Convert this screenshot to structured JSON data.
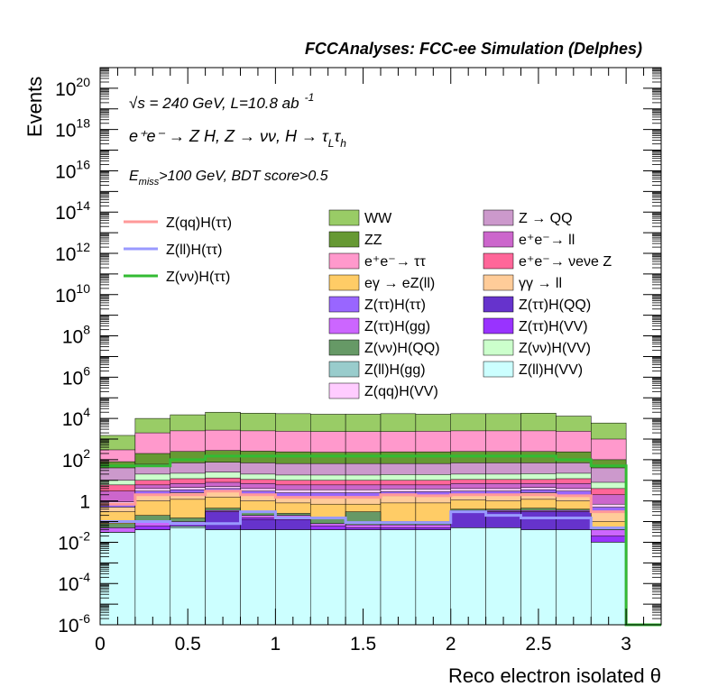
{
  "chart_data": {
    "type": "bar",
    "title": "FCCAnalyses: FCC-ee Simulation (Delphes)",
    "xlabel": "Reco electron isolated θ",
    "ylabel": "Events",
    "x_scale": "linear",
    "y_scale": "log",
    "xlim": [
      0,
      3.2
    ],
    "ylim": [
      1e-06,
      1e+21
    ],
    "x_ticks": [
      "0",
      "0.5",
      "1",
      "1.5",
      "2",
      "2.5",
      "3"
    ],
    "y_ticks": [
      {
        "value": 1e-06,
        "base": "10",
        "exp": "-6"
      },
      {
        "value": 0.0001,
        "base": "10",
        "exp": "-4"
      },
      {
        "value": 0.01,
        "base": "10",
        "exp": "-2"
      },
      {
        "value": 1,
        "base": "1",
        "exp": ""
      },
      {
        "value": 100.0,
        "base": "10",
        "exp": "2"
      },
      {
        "value": 10000.0,
        "base": "10",
        "exp": "4"
      },
      {
        "value": 1000000.0,
        "base": "10",
        "exp": "6"
      },
      {
        "value": 100000000.0,
        "base": "10",
        "exp": "8"
      },
      {
        "value": 10000000000.0,
        "base": "10",
        "exp": "10"
      },
      {
        "value": 1000000000000.0,
        "base": "10",
        "exp": "12"
      },
      {
        "value": 100000000000000.0,
        "base": "10",
        "exp": "14"
      },
      {
        "value": 1e+16,
        "base": "10",
        "exp": "16"
      },
      {
        "value": 1e+18,
        "base": "10",
        "exp": "18"
      },
      {
        "value": 1e+20,
        "base": "10",
        "exp": "20"
      }
    ],
    "annotations": {
      "energy": "√s = 240 GeV, L=10.8 ab",
      "energy_sup": "-1",
      "process": "e⁺e⁻ → Z H, Z → νν, H → τ",
      "process_sub1": "L",
      "process_tau2": "τ",
      "process_sub2": "h",
      "cut_e": "E",
      "cut_sub": "miss",
      "cut_rest": ">100 GeV, BDT score>0.5"
    },
    "bin_edges": [
      0,
      0.2,
      0.4,
      0.6,
      0.8,
      1.0,
      1.2,
      1.4,
      1.6,
      1.8,
      2.0,
      2.2,
      2.4,
      2.6,
      2.8,
      3.0
    ],
    "stack_boundaries": [
      {
        "name": "Z(ll)H(VV)",
        "color": "#ccffff",
        "values": [
          0.03,
          0.04,
          0.05,
          0.04,
          0.04,
          0.04,
          0.04,
          0.04,
          0.04,
          0.04,
          0.05,
          0.05,
          0.04,
          0.04,
          0.01
        ]
      },
      {
        "name": "Z(ll)H(gg)",
        "color": "#99cccc",
        "values": [
          0.03,
          0.04,
          0.06,
          0.04,
          0.04,
          0.04,
          0.04,
          0.04,
          0.04,
          0.04,
          0.05,
          0.05,
          0.04,
          0.04,
          0.01
        ]
      },
      {
        "name": "Z(ττ)H(QQ)",
        "color": "#6633cc",
        "values": [
          0.03,
          0.04,
          0.06,
          0.3,
          0.12,
          0.12,
          0.04,
          0.04,
          0.04,
          0.04,
          0.3,
          0.3,
          0.3,
          0.3,
          0.01
        ]
      },
      {
        "name": "Z(ττ)H(VV)",
        "color": "#9933ff",
        "values": [
          0.03,
          0.06,
          0.08,
          0.3,
          0.15,
          0.15,
          0.06,
          0.05,
          0.05,
          0.05,
          0.3,
          0.3,
          0.3,
          0.3,
          0.02
        ]
      },
      {
        "name": "Z(ττ)H(gg)",
        "color": "#cc66ff",
        "values": [
          0.05,
          0.1,
          0.1,
          0.35,
          0.2,
          0.2,
          0.08,
          0.07,
          0.07,
          0.07,
          0.35,
          0.35,
          0.35,
          0.35,
          0.04
        ]
      },
      {
        "name": "Z(νν)H(QQ)",
        "color": "#669966",
        "values": [
          0.08,
          0.2,
          0.15,
          0.45,
          0.3,
          0.25,
          0.15,
          0.3,
          0.1,
          0.1,
          0.4,
          0.4,
          0.45,
          0.4,
          0.05
        ]
      },
      {
        "name": "eγ → eZ(ll)",
        "color": "#ffcc66",
        "values": [
          0.3,
          1.0,
          1.2,
          1.5,
          1.0,
          0.8,
          0.7,
          0.7,
          0.8,
          0.8,
          1.1,
          1.0,
          1.2,
          1.0,
          0.1
        ]
      },
      {
        "name": "γγ → ll",
        "color": "#ffcc99",
        "values": [
          0.5,
          2.0,
          2.5,
          3.0,
          2.0,
          1.5,
          1.5,
          1.5,
          1.8,
          1.8,
          2.2,
          2.0,
          2.5,
          2.0,
          0.3
        ]
      },
      {
        "name": "Z(ττ)H(ττ)",
        "color": "#9966ff",
        "values": [
          0.7,
          3.0,
          3.5,
          4.0,
          3.0,
          2.5,
          2.5,
          2.5,
          2.8,
          2.8,
          3.0,
          3.0,
          3.5,
          3.0,
          0.5
        ]
      },
      {
        "name": "Z(qq)H(VV)",
        "color": "#ffccff",
        "values": [
          0.9,
          4.0,
          4.5,
          5.0,
          4.0,
          3.5,
          3.5,
          3.5,
          3.8,
          3.8,
          4.0,
          4.0,
          4.5,
          4.0,
          0.7
        ]
      },
      {
        "name": "e⁺e⁻ → ll",
        "color": "#cc66cc",
        "values": [
          3,
          6,
          7,
          8,
          7,
          6,
          6,
          6,
          6,
          6,
          7,
          7,
          7,
          7,
          2
        ]
      },
      {
        "name": "e⁺e⁻ → νeνe Z",
        "color": "#ff6699",
        "values": [
          6,
          10,
          12,
          13,
          11,
          10,
          10,
          10,
          10,
          10,
          11,
          11,
          11,
          12,
          4
        ]
      },
      {
        "name": "Z(νν)H(VV)",
        "color": "#ccffcc",
        "values": [
          10,
          20,
          22,
          25,
          20,
          18,
          18,
          18,
          19,
          19,
          20,
          20,
          21,
          22,
          8
        ]
      },
      {
        "name": "Z → QQ",
        "color": "#cc99cc",
        "values": [
          40,
          60,
          70,
          75,
          70,
          65,
          65,
          65,
          65,
          65,
          70,
          70,
          70,
          70,
          40
        ]
      },
      {
        "name": "ZZ",
        "color": "#669933",
        "values": [
          80,
          200,
          250,
          280,
          260,
          240,
          230,
          230,
          240,
          240,
          250,
          250,
          250,
          240,
          100
        ]
      },
      {
        "name": "e⁺e⁻ → ττ",
        "color": "#ff99cc",
        "values": [
          300,
          2000,
          2500,
          2700,
          2500,
          2400,
          2300,
          2300,
          2300,
          2400,
          2500,
          2500,
          2500,
          2400,
          1000
        ]
      },
      {
        "name": "WW",
        "color": "#99cc66",
        "values": [
          1500,
          10000,
          15000,
          20000,
          18000,
          17000,
          16000,
          16000,
          17000,
          16000,
          17000,
          17000,
          18000,
          13000,
          6000
        ]
      }
    ],
    "signal_series": [
      {
        "name": "Z(qq)H(ττ)",
        "color": "#ff9999",
        "values": [
          0.7,
          2.0,
          2.0,
          3.0,
          2.0,
          1.5,
          1.5,
          1.5,
          2.0,
          1.8,
          2.0,
          2.0,
          2.0,
          1.8,
          0.3
        ]
      },
      {
        "name": "Z(ll)H(ττ)",
        "color": "#9999ff",
        "values": [
          0.1,
          0.1,
          0.08,
          0.08,
          0.3,
          0.15,
          0.15,
          0.09,
          0.09,
          0.09,
          0.3,
          0.2,
          0.15,
          0.15,
          0.05
        ]
      },
      {
        "name": "Z(νν)H(ττ)",
        "color": "#33bb33",
        "values": [
          50,
          50,
          100,
          150,
          150,
          150,
          150,
          150,
          150,
          150,
          150,
          150,
          150,
          100,
          50
        ]
      }
    ],
    "legend_left": [
      {
        "name": "Z(qq)H(ττ)",
        "color": "#ff9999"
      },
      {
        "name": "Z(ll)H(ττ)",
        "color": "#9999ff"
      },
      {
        "name": "Z(νν)H(ττ)",
        "color": "#33bb33"
      }
    ],
    "legend_col1": [
      {
        "name": "WW",
        "color": "#99cc66"
      },
      {
        "name": "ZZ",
        "color": "#669933"
      },
      {
        "name": "e⁺e⁻→ ττ",
        "color": "#ff99cc"
      },
      {
        "name": "eγ → eZ(ll)",
        "color": "#ffcc66"
      },
      {
        "name": "Z(ττ)H(ττ)",
        "color": "#9966ff"
      },
      {
        "name": "Z(ττ)H(gg)",
        "color": "#cc66ff"
      },
      {
        "name": "Z(νν)H(QQ)",
        "color": "#669966"
      },
      {
        "name": "Z(ll)H(gg)",
        "color": "#99cccc"
      },
      {
        "name": "Z(qq)H(VV)",
        "color": "#ffccff"
      }
    ],
    "legend_col2": [
      {
        "name": "Z → QQ",
        "color": "#cc99cc"
      },
      {
        "name": "e⁺e⁻→ ll",
        "color": "#cc66cc"
      },
      {
        "name": "e⁺e⁻→ νeνe Z",
        "color": "#ff6699"
      },
      {
        "name": "γγ → ll",
        "color": "#ffcc99"
      },
      {
        "name": "Z(ττ)H(QQ)",
        "color": "#6633cc"
      },
      {
        "name": "Z(ττ)H(VV)",
        "color": "#9933ff"
      },
      {
        "name": "Z(νν)H(VV)",
        "color": "#ccffcc"
      },
      {
        "name": "Z(ll)H(VV)",
        "color": "#ccffff"
      }
    ],
    "grid": false
  }
}
